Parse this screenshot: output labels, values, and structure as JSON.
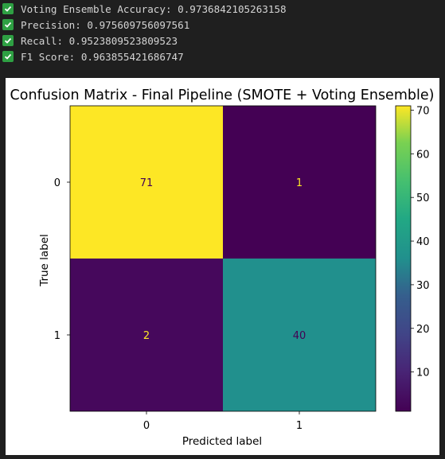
{
  "console": {
    "lines": [
      {
        "icon": "check-icon",
        "text": "Voting Ensemble Accuracy: 0.9736842105263158"
      },
      {
        "icon": "check-icon",
        "text": "Precision: 0.975609756097561"
      },
      {
        "icon": "check-icon",
        "text": "Recall: 0.9523809523809523"
      },
      {
        "icon": "check-icon",
        "text": "F1 Score: 0.963855421686747"
      }
    ],
    "check_color": "#2ea043"
  },
  "chart_data": {
    "type": "heatmap",
    "title": "Confusion Matrix - Final Pipeline (SMOTE + Voting Ensemble)",
    "xlabel": "Predicted label",
    "ylabel": "True label",
    "x_categories": [
      "0",
      "1"
    ],
    "y_categories": [
      "0",
      "1"
    ],
    "matrix": [
      [
        71,
        1
      ],
      [
        2,
        40
      ]
    ],
    "colormap": "viridis",
    "colorbar": {
      "min": 1,
      "max": 71,
      "ticks": [
        10,
        20,
        30,
        40,
        50,
        60,
        70
      ]
    },
    "cell_colors": [
      [
        "#fde725",
        "#440154"
      ],
      [
        "#46085c",
        "#21908d"
      ]
    ],
    "cell_text_colors": [
      [
        "#440154",
        "#fde725"
      ],
      [
        "#fde725",
        "#440154"
      ]
    ]
  }
}
